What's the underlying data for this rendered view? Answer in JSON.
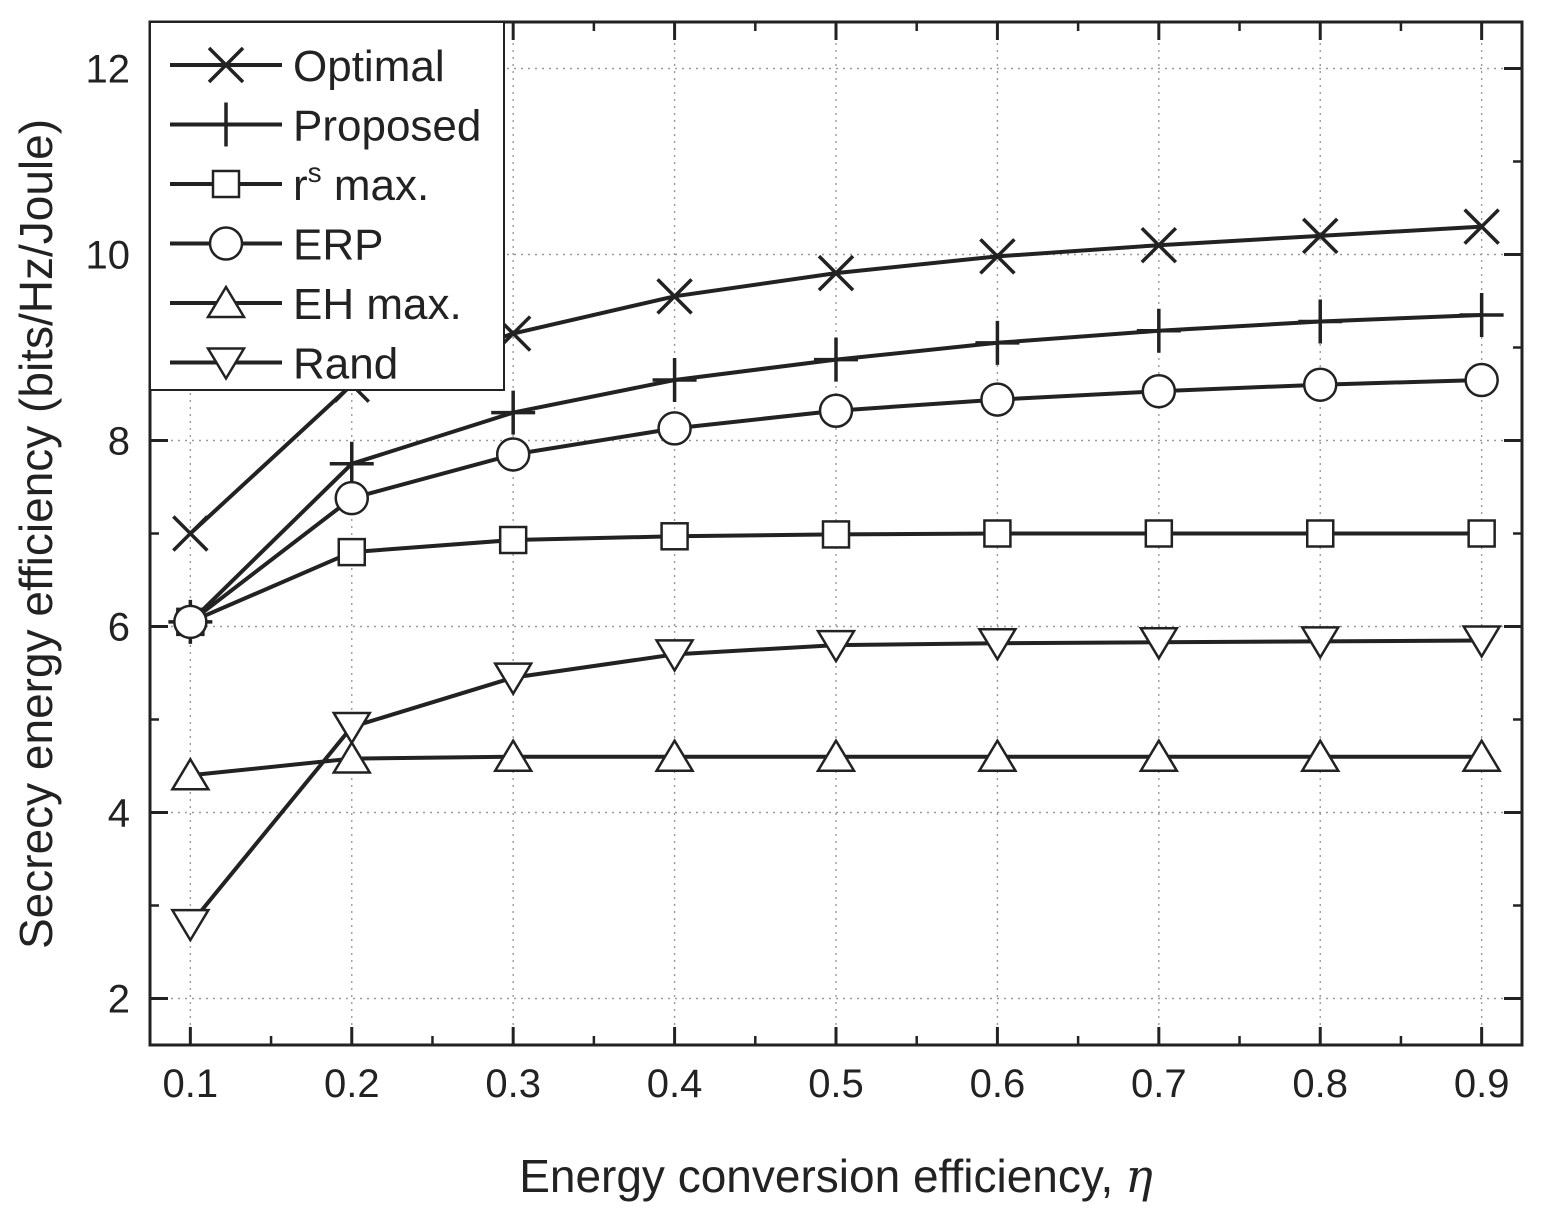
{
  "chart_data": {
    "type": "line",
    "title": "",
    "xlabel": "Energy conversion efficiency,",
    "xlabel_symbol": "η",
    "ylabel": "Secrecy energy efficiency (bits/Hz/Joule)",
    "x": [
      0.1,
      0.2,
      0.3,
      0.4,
      0.5,
      0.6,
      0.7,
      0.8,
      0.9
    ],
    "xlim": [
      0.075,
      0.925
    ],
    "ylim": [
      1.5,
      12.5
    ],
    "xticks": [
      "0.1",
      "0.2",
      "0.3",
      "0.4",
      "0.5",
      "0.6",
      "0.7",
      "0.8",
      "0.9"
    ],
    "yticks": [
      "2",
      "4",
      "6",
      "8",
      "10",
      "12"
    ],
    "grid": true,
    "legend_position": "top-left",
    "series": [
      {
        "name": "Optimal",
        "marker": "x-cross",
        "values": [
          7.0,
          8.6,
          9.15,
          9.55,
          9.8,
          9.98,
          10.1,
          10.2,
          10.3
        ]
      },
      {
        "name": "Proposed",
        "marker": "plus",
        "values": [
          6.05,
          7.75,
          8.3,
          8.65,
          8.87,
          9.05,
          9.18,
          9.28,
          9.35
        ]
      },
      {
        "name": "max.",
        "name_base": "r",
        "name_sup": "s",
        "marker": "square",
        "values": [
          6.05,
          6.8,
          6.93,
          6.97,
          6.99,
          7.0,
          7.0,
          7.0,
          7.0
        ]
      },
      {
        "name": "ERP",
        "marker": "circle",
        "values": [
          6.05,
          7.38,
          7.85,
          8.13,
          8.32,
          8.44,
          8.53,
          8.6,
          8.65
        ]
      },
      {
        "name": "EH max.",
        "marker": "triangle-up",
        "values": [
          4.4,
          4.58,
          4.6,
          4.6,
          4.6,
          4.6,
          4.6,
          4.6,
          4.6
        ]
      },
      {
        "name": "Rand",
        "marker": "triangle-down",
        "values": [
          2.8,
          4.92,
          5.45,
          5.7,
          5.8,
          5.82,
          5.83,
          5.84,
          5.85
        ]
      }
    ]
  }
}
